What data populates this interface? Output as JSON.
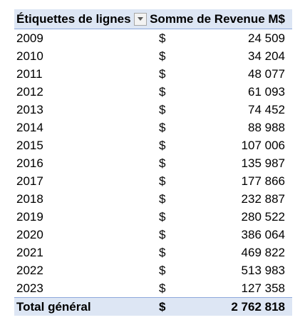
{
  "header": {
    "row_label": "Étiquettes de lignes",
    "filter_icon": "dropdown-arrow-icon",
    "value_label": "Somme de Revenue M$"
  },
  "rows": [
    {
      "year": "2009",
      "currency": "$",
      "value": "24 509"
    },
    {
      "year": "2010",
      "currency": "$",
      "value": "34 204"
    },
    {
      "year": "2011",
      "currency": "$",
      "value": "48 077"
    },
    {
      "year": "2012",
      "currency": "$",
      "value": "61 093"
    },
    {
      "year": "2013",
      "currency": "$",
      "value": "74 452"
    },
    {
      "year": "2014",
      "currency": "$",
      "value": "88 988"
    },
    {
      "year": "2015",
      "currency": "$",
      "value": "107 006"
    },
    {
      "year": "2016",
      "currency": "$",
      "value": "135 987"
    },
    {
      "year": "2017",
      "currency": "$",
      "value": "177 866"
    },
    {
      "year": "2018",
      "currency": "$",
      "value": "232 887"
    },
    {
      "year": "2019",
      "currency": "$",
      "value": "280 522"
    },
    {
      "year": "2020",
      "currency": "$",
      "value": "386 064"
    },
    {
      "year": "2021",
      "currency": "$",
      "value": "469 822"
    },
    {
      "year": "2022",
      "currency": "$",
      "value": "513 983"
    },
    {
      "year": "2023",
      "currency": "$",
      "value": "127 358"
    }
  ],
  "total": {
    "label": "Total général",
    "currency": "$",
    "value": "2 762 818"
  },
  "colors": {
    "header_bg": "#dde6f4",
    "border": "#8ea9db"
  }
}
